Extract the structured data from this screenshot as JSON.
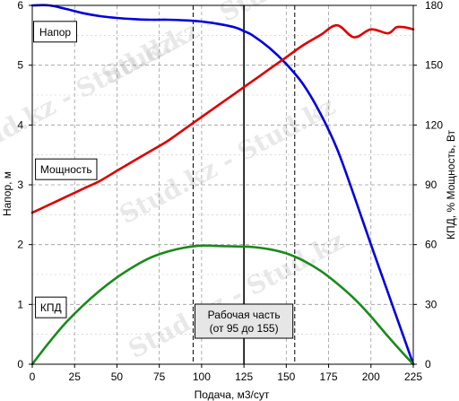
{
  "chart_data": {
    "type": "line",
    "xlabel": "Подача, м3/сут",
    "ylabel_left": "Напор, м",
    "ylabel_right": "КПД, %  Мощность, Вт",
    "xlim": [
      0,
      225
    ],
    "ylim_left": [
      0,
      6
    ],
    "ylim_right": [
      0,
      180
    ],
    "x_ticks": [
      "0",
      "25",
      "50",
      "75",
      "100",
      "125",
      "150",
      "175",
      "200",
      "225"
    ],
    "y_left_ticks": [
      "0",
      "1",
      "2",
      "3",
      "4",
      "5",
      "6"
    ],
    "y_right_ticks": [
      "0",
      "30",
      "60",
      "90",
      "120",
      "150",
      "180"
    ],
    "grid": true,
    "series": [
      {
        "name": "Напор",
        "axis": "left",
        "color": "#0000dd",
        "x": [
          0,
          10,
          20,
          30,
          40,
          50,
          60,
          70,
          80,
          90,
          100,
          110,
          120,
          125,
          130,
          140,
          150,
          160,
          170,
          180,
          190,
          200,
          210,
          220,
          225
        ],
        "y": [
          6.0,
          6.0,
          5.94,
          5.87,
          5.82,
          5.79,
          5.77,
          5.76,
          5.76,
          5.75,
          5.73,
          5.69,
          5.63,
          5.57,
          5.5,
          5.29,
          5.02,
          4.68,
          4.2,
          3.6,
          2.82,
          2.0,
          1.2,
          0.4,
          0.0
        ]
      },
      {
        "name": "Мощность",
        "axis": "right",
        "color": "#dd0000",
        "x": [
          0,
          10,
          20,
          30,
          40,
          50,
          60,
          70,
          80,
          90,
          100,
          110,
          120,
          130,
          140,
          150,
          160,
          170,
          180,
          190,
          200,
          210,
          215,
          220,
          225
        ],
        "y": [
          76,
          80,
          84,
          88,
          92,
          97,
          102,
          107,
          112,
          118,
          124,
          130,
          136,
          142,
          148,
          154,
          160,
          165,
          170,
          164,
          168,
          166,
          169,
          169,
          168
        ],
        "y_note": ""
      },
      {
        "name": "КПД",
        "axis": "right",
        "color": "#1a8a1a",
        "x": [
          0,
          10,
          20,
          30,
          40,
          50,
          60,
          70,
          80,
          90,
          100,
          110,
          120,
          125,
          130,
          140,
          150,
          160,
          170,
          180,
          190,
          200,
          210,
          220,
          225
        ],
        "y": [
          0,
          11,
          21,
          29.5,
          37,
          43.5,
          49,
          53.5,
          56.5,
          58.5,
          59.5,
          59.3,
          59.1,
          59.0,
          58.8,
          57.7,
          55.6,
          52,
          47,
          40.5,
          33,
          24,
          14,
          4.5,
          0
        ]
      }
    ],
    "reference_lines": [
      {
        "x": 95,
        "style": "dashed"
      },
      {
        "x": 125,
        "style": "solid"
      },
      {
        "x": 155,
        "style": "dashed"
      }
    ],
    "annotations": {
      "head_label": "Напор",
      "power_label": "Мощность",
      "eff_label": "КПД",
      "work_zone_line1": "Рабочая часть",
      "work_zone_line2": "(от 95 до 155)"
    },
    "watermark": "Stud.kz - Stud.kz"
  }
}
